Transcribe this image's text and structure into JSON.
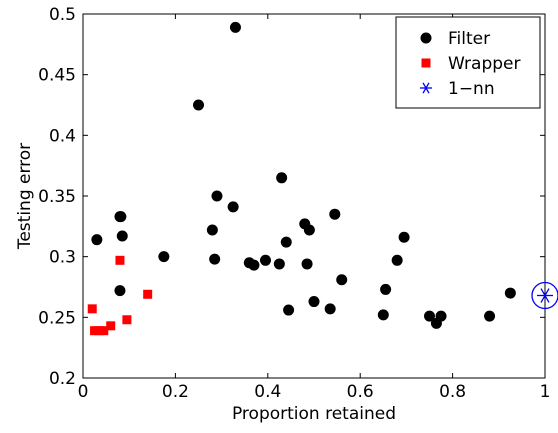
{
  "chart_data": {
    "type": "scatter",
    "xlabel": "Proportion retained",
    "ylabel": "Testing error",
    "xlim": [
      0,
      1
    ],
    "ylim": [
      0.2,
      0.5
    ],
    "x_ticks": [
      {
        "value": 0,
        "label": "0"
      },
      {
        "value": 0.2,
        "label": "0.2"
      },
      {
        "value": 0.4,
        "label": "0.4"
      },
      {
        "value": 0.6,
        "label": "0.6"
      },
      {
        "value": 0.8,
        "label": "0.8"
      },
      {
        "value": 1,
        "label": "1"
      }
    ],
    "y_ticks": [
      {
        "value": 0.2,
        "label": "0.2"
      },
      {
        "value": 0.25,
        "label": "0.25"
      },
      {
        "value": 0.3,
        "label": "0.3"
      },
      {
        "value": 0.35,
        "label": "0.35"
      },
      {
        "value": 0.4,
        "label": "0.4"
      },
      {
        "value": 0.45,
        "label": "0.45"
      },
      {
        "value": 0.5,
        "label": "0.5"
      }
    ],
    "grid": false,
    "legend_position": "top-right",
    "series": [
      {
        "name": "Filter",
        "marker": "filled-circle",
        "color": "#000000",
        "points": [
          [
            0.03,
            0.314
          ],
          [
            0.08,
            0.333
          ],
          [
            0.082,
            0.333
          ],
          [
            0.085,
            0.317
          ],
          [
            0.08,
            0.272
          ],
          [
            0.175,
            0.3
          ],
          [
            0.25,
            0.425
          ],
          [
            0.33,
            0.489
          ],
          [
            0.29,
            0.35
          ],
          [
            0.28,
            0.322
          ],
          [
            0.285,
            0.298
          ],
          [
            0.325,
            0.341
          ],
          [
            0.36,
            0.295
          ],
          [
            0.37,
            0.293
          ],
          [
            0.395,
            0.297
          ],
          [
            0.425,
            0.294
          ],
          [
            0.43,
            0.365
          ],
          [
            0.44,
            0.312
          ],
          [
            0.445,
            0.256
          ],
          [
            0.48,
            0.327
          ],
          [
            0.485,
            0.294
          ],
          [
            0.49,
            0.322
          ],
          [
            0.5,
            0.263
          ],
          [
            0.535,
            0.257
          ],
          [
            0.545,
            0.335
          ],
          [
            0.56,
            0.281
          ],
          [
            0.65,
            0.252
          ],
          [
            0.655,
            0.273
          ],
          [
            0.68,
            0.297
          ],
          [
            0.695,
            0.316
          ],
          [
            0.75,
            0.251
          ],
          [
            0.765,
            0.245
          ],
          [
            0.775,
            0.251
          ],
          [
            0.88,
            0.251
          ],
          [
            0.925,
            0.27
          ]
        ]
      },
      {
        "name": "Wrapper",
        "marker": "filled-square",
        "color": "#ff0000",
        "points": [
          [
            0.02,
            0.257
          ],
          [
            0.025,
            0.239
          ],
          [
            0.035,
            0.239
          ],
          [
            0.045,
            0.239
          ],
          [
            0.06,
            0.243
          ],
          [
            0.08,
            0.297
          ],
          [
            0.095,
            0.248
          ],
          [
            0.14,
            0.269
          ]
        ]
      },
      {
        "name": "1−nn",
        "marker": "asterisk",
        "color": "#0000ff",
        "points": [
          [
            1.0,
            0.268
          ]
        ]
      }
    ]
  }
}
